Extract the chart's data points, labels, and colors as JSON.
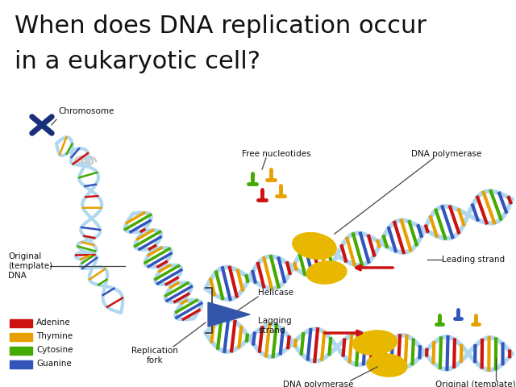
{
  "title_line1": "When does DNA replication occur",
  "title_line2": "in a eukaryotic cell?",
  "title_fontsize": 22,
  "bg_color": "#ffffff",
  "legend_items": [
    {
      "label": "Adenine",
      "color": "#cc1111"
    },
    {
      "label": "Thymine",
      "color": "#e8a000"
    },
    {
      "label": "Cytosine",
      "color": "#44aa00"
    },
    {
      "label": "Guanine",
      "color": "#3355bb"
    }
  ],
  "colors": {
    "red": "#cc1111",
    "orange": "#e8a000",
    "green": "#44aa00",
    "blue": "#3355bb",
    "lblue": "#b0d8ee",
    "gold": "#e8b800",
    "dblue": "#1a2f7a",
    "gray": "#888888"
  },
  "label_fontsize": 7.5
}
